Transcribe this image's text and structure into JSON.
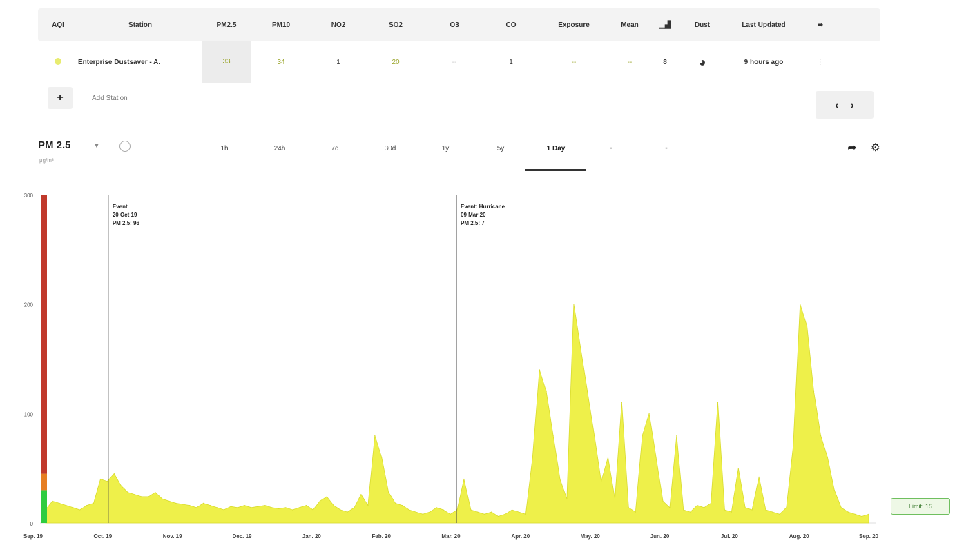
{
  "table": {
    "headers": [
      "AQI",
      "Station",
      "PM2.5",
      "PM10",
      "NO2",
      "SO2",
      "O3",
      "CO",
      "Exposure",
      "Mean",
      "Rating",
      "Dust",
      "Last Updated",
      "Share"
    ],
    "row": {
      "station": "Enterprise Dustsaver - A.",
      "pm25": "33",
      "pm10": "34",
      "no2": "1",
      "so2": "20",
      "o3": "--",
      "co": "1",
      "exposure": "--",
      "mean": "--",
      "rating": "8",
      "updated": "9 hours ago"
    },
    "add_label": "Add Station"
  },
  "pager": {
    "prev": "‹",
    "next": "›"
  },
  "toolbar": {
    "metric": "PM 2.5",
    "unit": "μg/m³",
    "ranges": [
      "1h",
      "24h",
      "7d",
      "30d",
      "1y",
      "5y",
      "1 Day",
      "",
      ""
    ],
    "active_range": "1 Day"
  },
  "legend_badge": "Limit: 15",
  "colors": {
    "fill": "#eef04a",
    "line": "#d9dc2e",
    "danger": "#c0392b",
    "warn": "#e67e22",
    "ok": "#2ecc40"
  },
  "chart_data": {
    "type": "area",
    "title": "",
    "xlabel": "",
    "ylabel": "",
    "ylim": [
      0,
      300
    ],
    "y_ticks": [
      0,
      100,
      200,
      300
    ],
    "y_tick_labels": [
      "0",
      "100",
      "200",
      "300"
    ],
    "x_ticks": [
      "Sep. 19",
      "Oct. 19",
      "Nov. 19",
      "Dec. 19",
      "Jan. 20",
      "Feb. 20",
      "Mar. 20",
      "Apr. 20",
      "May. 20",
      "Jun. 20",
      "Jul. 20",
      "Aug. 20",
      "Sep. 20"
    ],
    "series": [
      {
        "values": [
          12,
          20,
          18,
          16,
          14,
          12,
          16,
          18,
          40,
          38,
          45,
          34,
          28,
          26,
          24,
          24,
          28,
          22,
          20,
          18,
          17,
          16,
          14,
          18,
          16,
          14,
          12,
          15,
          14,
          16,
          14,
          15,
          16,
          14,
          13,
          14,
          12,
          14,
          16,
          12,
          20,
          24,
          16,
          12,
          10,
          14,
          26,
          16,
          80,
          60,
          28,
          18,
          16,
          12,
          10,
          8,
          10,
          14,
          12,
          8,
          12,
          40,
          12,
          10,
          8,
          10,
          6,
          8,
          12,
          10,
          8,
          60,
          140,
          120,
          80,
          40,
          22,
          200,
          160,
          120,
          80,
          38,
          60,
          22,
          110,
          14,
          10,
          80,
          100,
          60,
          20,
          14,
          80,
          12,
          10,
          16,
          14,
          18,
          110,
          12,
          10,
          50,
          14,
          12,
          42,
          12,
          10,
          8,
          14,
          70,
          200,
          180,
          120,
          80,
          60,
          30,
          14,
          10,
          8,
          6,
          8
        ]
      }
    ],
    "annotations": [
      {
        "x": "Oct. 19",
        "lines": [
          "Event",
          "20 Oct 19",
          "PM 2.5: 96"
        ]
      },
      {
        "x": "Mar. 20",
        "lines": [
          "Event: Hurricane",
          "09 Mar 20",
          "PM 2.5: 7"
        ]
      }
    ]
  }
}
